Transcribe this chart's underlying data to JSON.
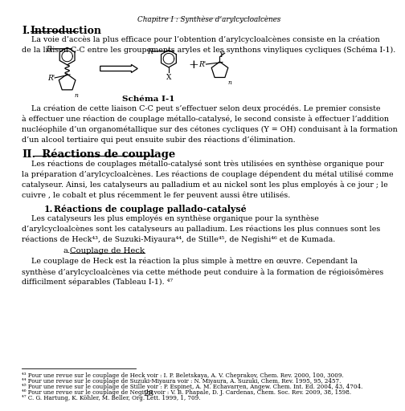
{
  "background_color": "#ffffff",
  "header_text": "Chapitre I : Synthèse d’arylcycloalcènes",
  "section1_title": "I.",
  "section1_name": "Introduction",
  "intro_paragraph": "    La voie d’accès la plus efficace pour l’obtention d’arylcycloalcènes consiste en la création\nde la liaison C-C entre les groupements aryles et les synthons vinyliques cycliques (Schéma I-1).",
  "schema_label": "Schéma I-1",
  "paragraph2": "    La création de cette liaison C-C peut s’effectuer selon deux procédés. Le premier consiste\nà effectuer une réaction de couplage métallo-catalysé, le second consiste à effectuer l’addition\nnucléophile d’un organométallique sur des cétones cycliques (Y = OH) conduisant à la formation\nd’un alcool tertiaire qui peut ensuite subir des réactions d’élimination.",
  "section2_num": "II.",
  "section2_name": "  Réactions de couplage",
  "section2_paragraph": "    Les réactions de couplages métallo-catalysé sont très utilisées en synthèse organique pour\nla préparation d’arylcycloalcènes. Les réactions de couplage dépendent du métal utilisé comme\ncatalyseur. Ainsi, les catalyseurs au palladium et au nickel sont les plus employés à ce jour ; le\ncuivre , le cobalt et plus récemment le fer peuvent aussi être utilisés.",
  "subsec1_num": "1.",
  "subsec1_name": "Réactions de couplage pallado-catalysé",
  "subsec1_paragraph": "    Les catalyseurs les plus employés en synthèse organique pour la synthèse\nd’arylcycloalcènes sont les catalyseurs au palladium. Les réactions les plus connues sont les\nréactions de Heck⁴³, de Suzuki-Miyaura⁴⁴, de Stille⁴⁵, de Negishi⁴⁶ et de Kumada.",
  "subsubsec_a": "a.",
  "subsubsec_a_name": "Couplage de Heck",
  "subsubsec_a_paragraph": "    Le couplage de Heck est la réaction la plus simple à mettre en œuvre. Cependant la\nsynthèse d’arylcycloalcènes via cette méthode peut conduire à la formation de régioisômères\ndifficilment séparables (Tableau I-1). ⁴⁷",
  "footnotes": [
    "⁴³ Pour une revue sur le couplage de Heck voir : I. P. Beletskaya, A. V. Cheprakov, Chem. Rev. 2000, 100, 3009.",
    "⁴⁴ Pour une revue sur le couplage de Suzuki-Miyaura voir : N. Miyaura, A. Suzuki, Chem. Rev. 1995, 95, 2457.",
    "⁴⁵ Pour une revue sur le couplage de Stille voir : P. Espinet, A. M. Echavarren, Angew. Chem. Int. Ed. 2004, 43, 4704.",
    "⁴⁶ Pour une revue sur le couplage de Negishi voir : V. B. Phapale, D. J. Cardenas, Chem. Soc. Rev. 2009, 38, 1598.",
    "⁴⁷ C. G. Hartung, K. Köhler, M. Beller, Org. Lett. 1999, 1, 709."
  ],
  "page_number": "28"
}
